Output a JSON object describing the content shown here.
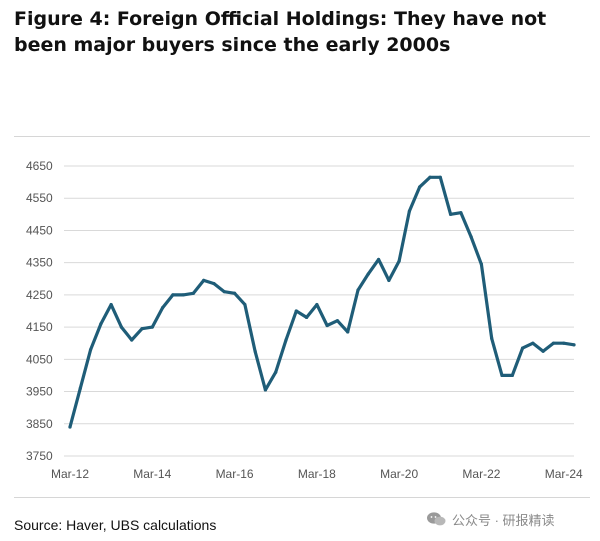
{
  "title": "Figure 4: Foreign Official Holdings: They have not been major buyers since the early 2000s",
  "source": "Source: Haver, UBS calculations",
  "watermark": "公众号 · 研报精读",
  "colors": {
    "line": "#1f5d78",
    "grid": "#d9d9d9",
    "axis_text": "#555555"
  },
  "chart_data": {
    "type": "line",
    "title": "Figure 4: Foreign Official Holdings: They have not been major buyers since the early 2000s",
    "xlabel": "",
    "ylabel": "",
    "ylim": [
      3750,
      4650
    ],
    "yticks": [
      3750,
      3850,
      3950,
      4050,
      4150,
      4250,
      4350,
      4450,
      4550,
      4650
    ],
    "xtick_labels": [
      "Mar-12",
      "Mar-14",
      "Mar-16",
      "Mar-18",
      "Mar-20",
      "Mar-22",
      "Mar-24"
    ],
    "grid": true,
    "legend": "none",
    "x": [
      "2012-03",
      "2012-06",
      "2012-09",
      "2012-12",
      "2013-03",
      "2013-06",
      "2013-09",
      "2013-12",
      "2014-03",
      "2014-06",
      "2014-09",
      "2014-12",
      "2015-03",
      "2015-06",
      "2015-09",
      "2015-12",
      "2016-03",
      "2016-06",
      "2016-09",
      "2016-12",
      "2017-03",
      "2017-06",
      "2017-09",
      "2017-12",
      "2018-03",
      "2018-06",
      "2018-09",
      "2018-12",
      "2019-03",
      "2019-06",
      "2019-09",
      "2019-12",
      "2020-03",
      "2020-06",
      "2020-09",
      "2020-12",
      "2021-03",
      "2021-06",
      "2021-09",
      "2021-12",
      "2022-03",
      "2022-06",
      "2022-09",
      "2022-12",
      "2023-03",
      "2023-06",
      "2023-09",
      "2023-12",
      "2024-03",
      "2024-06"
    ],
    "values": [
      3840,
      3960,
      4080,
      4160,
      4220,
      4150,
      4110,
      4145,
      4150,
      4210,
      4250,
      4250,
      4255,
      4295,
      4285,
      4260,
      4255,
      4220,
      4075,
      3955,
      4010,
      4110,
      4200,
      4180,
      4220,
      4155,
      4170,
      4135,
      4265,
      4315,
      4360,
      4295,
      4355,
      4510,
      4585,
      4615,
      4615,
      4500,
      4505,
      4430,
      4345,
      4115,
      4000,
      4000,
      4085,
      4100,
      4075,
      4100,
      4100,
      4095
    ]
  }
}
